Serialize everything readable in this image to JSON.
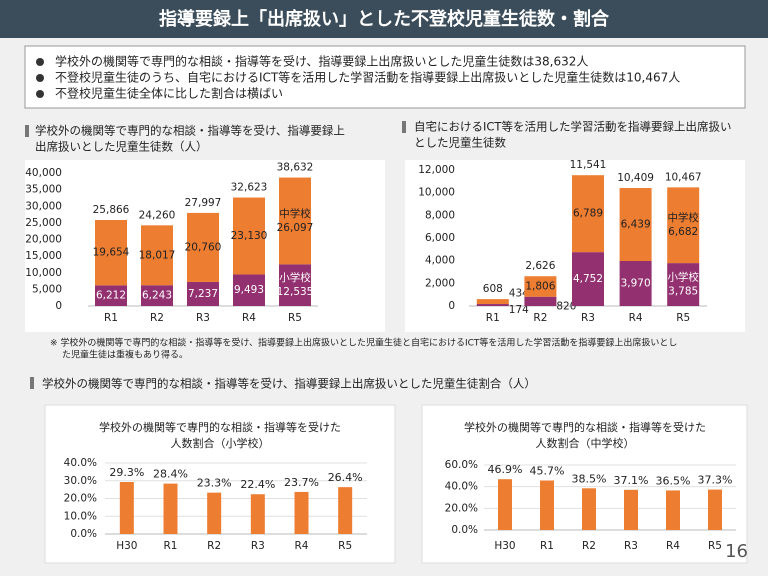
{
  "header": {
    "title": "指導要録上「出席扱い」とした不登校児童生徒数・割合"
  },
  "bullets": [
    "学校外の機関等で専門的な相談・指導等を受け、指導要録上出席扱いとした児童生徒数は38,632人",
    "不登校児童生徒のうち、自宅におけるICT等を活用した学習活動を指導要録上出席扱いとした児童生徒数は10,467人",
    "不登校児童生徒全体に比した割合は横ばい"
  ],
  "note_lines": [
    "※ 学校外の機関等で専門的な相談・指導等を受け、指導要録上出席扱いとした児童生徒と自宅におけるICT等を活用した学習活動を指導要録上出席扱いとし",
    "た児童生徒は重複もあり得る。"
  ],
  "section_heading": "学校外の機関等で専門的な相談・指導等を受け、指導要録上出席扱いとした児童生徒割合（人）",
  "page_number": "16",
  "chart_data": [
    {
      "type": "stacked_bar",
      "title_lines": [
        "学校外の機関等で専門的な相談・指導等を受け、指導要録上",
        "出席扱いとした児童生徒数（人）"
      ],
      "categories": [
        "R1",
        "R2",
        "R3",
        "R4",
        "R5"
      ],
      "series": [
        {
          "name": "小学校",
          "color": "#93306f",
          "values": [
            6212,
            6243,
            7237,
            9493,
            12535
          ],
          "value_labels": [
            "6,212",
            "6,243",
            "7,237",
            "9,493",
            "12,535"
          ]
        },
        {
          "name": "中学校",
          "color": "#ed7d31",
          "values": [
            19654,
            18017,
            20760,
            23130,
            26097
          ],
          "value_labels": [
            "19,654",
            "18,017",
            "20,760",
            "23,130",
            "26,097"
          ]
        }
      ],
      "totals": [
        25866,
        24260,
        27997,
        32623,
        38632
      ],
      "total_labels": [
        "25,866",
        "24,260",
        "27,997",
        "32,623",
        "38,632"
      ],
      "ylim": [
        0,
        40000
      ],
      "yticks": [
        {
          "value": 0,
          "label": "0"
        },
        {
          "value": 5000,
          "label": "5,000"
        },
        {
          "value": 10000,
          "label": "10,000"
        },
        {
          "value": 15000,
          "label": "15,000"
        },
        {
          "value": 20000,
          "label": "20,000"
        },
        {
          "value": 25000,
          "label": "25,000"
        },
        {
          "value": 30000,
          "label": "30,000"
        },
        {
          "value": 35000,
          "label": "35,000"
        },
        {
          "value": 40000,
          "label": "40,000"
        }
      ],
      "grid": false
    },
    {
      "type": "stacked_bar",
      "title_lines": [
        "自宅におけるICT等を活用した学習活動を指導要録上出席扱い",
        "とした児童生徒数"
      ],
      "categories": [
        "R1",
        "R2",
        "R3",
        "R4",
        "R5"
      ],
      "series": [
        {
          "name": "小学校",
          "color": "#93306f",
          "values": [
            174,
            820,
            4752,
            3970,
            3785
          ],
          "value_labels": [
            "174",
            "820",
            "4,752",
            "3,970",
            "3,785"
          ]
        },
        {
          "name": "中学校",
          "color": "#ed7d31",
          "values": [
            434,
            1806,
            6789,
            6439,
            6682
          ],
          "value_labels": [
            "434",
            "1,806",
            "6,789",
            "6,439",
            "6,682"
          ]
        }
      ],
      "totals": [
        608,
        2626,
        11541,
        10409,
        10467
      ],
      "total_labels": [
        "608",
        "2,626",
        "11,541",
        "10,409",
        "10,467"
      ],
      "ylim": [
        0,
        12000
      ],
      "yticks": [
        0,
        {
          "value": 2000,
          "label": "2,000"
        },
        {
          "value": 4000,
          "label": "4,000"
        },
        {
          "value": 6000,
          "label": "6,000"
        },
        {
          "value": 8000,
          "label": "8,000"
        },
        {
          "value": 10000,
          "label": "10,000"
        },
        {
          "value": 12000,
          "label": "12,000"
        }
      ],
      "grid": false
    },
    {
      "type": "bar",
      "title_lines": [
        "学校外の機関等で専門的な相談・指導等を受けた",
        "人数割合（小学校）"
      ],
      "categories": [
        "H30",
        "R1",
        "R2",
        "R3",
        "R4",
        "R5"
      ],
      "values": [
        29.3,
        28.4,
        23.3,
        22.4,
        23.7,
        26.4
      ],
      "value_labels": [
        "29.3%",
        "28.4%",
        "23.3%",
        "22.4%",
        "23.7%",
        "26.4%"
      ],
      "color": "#ed7d31",
      "ylim": [
        0,
        40
      ],
      "yticks": [
        {
          "value": 0,
          "label": "0.0%"
        },
        {
          "value": 10,
          "label": "10.0%"
        },
        {
          "value": 20,
          "label": "20.0%"
        },
        {
          "value": 30,
          "label": "30.0%"
        },
        {
          "value": 40,
          "label": "40.0%"
        }
      ],
      "grid": true
    },
    {
      "type": "bar",
      "title_lines": [
        "学校外の機関等で専門的な相談・指導等を受けた",
        "人数割合（中学校）"
      ],
      "categories": [
        "H30",
        "R1",
        "R2",
        "R3",
        "R4",
        "R5"
      ],
      "values": [
        46.9,
        45.7,
        38.5,
        37.1,
        36.5,
        37.3
      ],
      "value_labels": [
        "46.9%",
        "45.7%",
        "38.5%",
        "37.1%",
        "36.5%",
        "37.3%"
      ],
      "color": "#ed7d31",
      "ylim": [
        0,
        60
      ],
      "yticks": [
        {
          "value": 0,
          "label": "0.0%"
        },
        {
          "value": 20,
          "label": "20.0%"
        },
        {
          "value": 40,
          "label": "40.0%"
        },
        {
          "value": 60,
          "label": "60.0%"
        }
      ],
      "grid": true
    }
  ]
}
